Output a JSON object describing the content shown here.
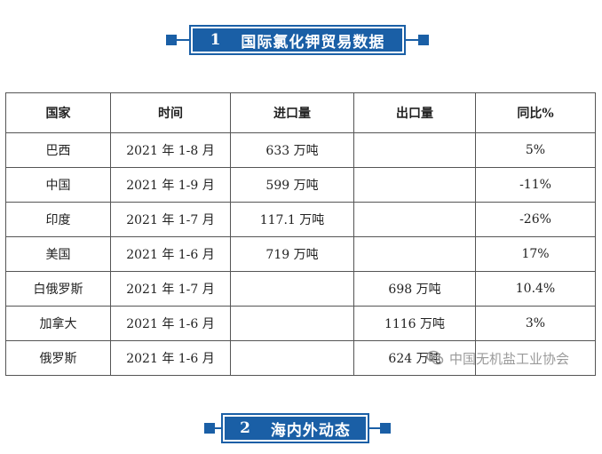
{
  "section1": {
    "number": "1",
    "title": "国际氯化钾贸易数据"
  },
  "section2": {
    "number": "2",
    "title": "海内外动态"
  },
  "table": {
    "headers": [
      "国家",
      "时间",
      "进口量",
      "出口量",
      "同比%"
    ],
    "rows": [
      [
        "巴西",
        "2021 年 1-8 月",
        "633 万吨",
        "",
        "5%"
      ],
      [
        "中国",
        "2021 年 1-9 月",
        "599 万吨",
        "",
        "-11%"
      ],
      [
        "印度",
        "2021 年 1-7 月",
        "117.1 万吨",
        "",
        "-26%"
      ],
      [
        "美国",
        "2021 年 1-6 月",
        "719 万吨",
        "",
        "17%"
      ],
      [
        "白俄罗斯",
        "2021 年 1-7 月",
        "",
        "698 万吨",
        "10.4%"
      ],
      [
        "加拿大",
        "2021 年 1-6 月",
        "",
        "1116 万吨",
        "3%"
      ],
      [
        "俄罗斯",
        "2021 年 1-6 月",
        "",
        "624 万吨",
        ""
      ]
    ]
  },
  "watermark": {
    "text": "中国无机盐工业协会",
    "icon": "wechat-icon"
  },
  "colors": {
    "accent": "#1a5fa6"
  }
}
